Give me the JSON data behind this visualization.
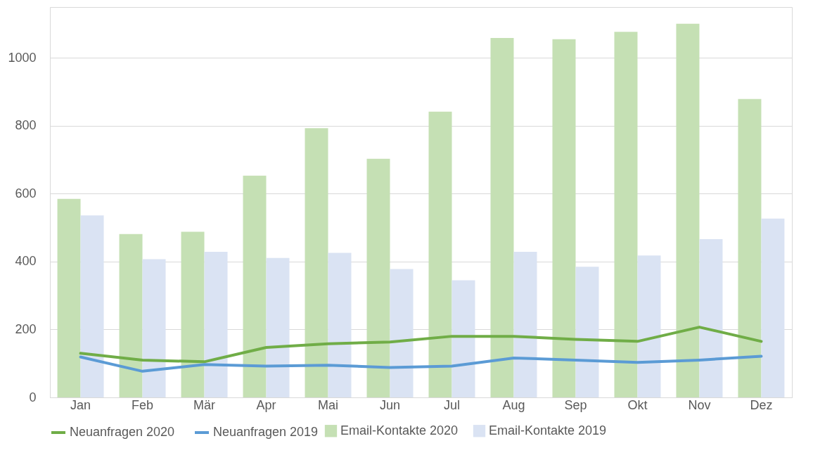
{
  "chart_data": {
    "type": "bar",
    "categories": [
      "Jan",
      "Feb",
      "Mär",
      "Apr",
      "Mai",
      "Jun",
      "Jul",
      "Aug",
      "Sep",
      "Okt",
      "Nov",
      "Dez"
    ],
    "series": [
      {
        "name": "Email-Kontakte 2020",
        "color": "#c5e0b4",
        "values": [
          585,
          481,
          488,
          653,
          793,
          703,
          842,
          1059,
          1055,
          1077,
          1101,
          879
        ]
      },
      {
        "name": "Email-Kontakte 2019",
        "color": "#dae3f3",
        "values": [
          536,
          407,
          429,
          411,
          426,
          378,
          345,
          429,
          385,
          418,
          466,
          527
        ]
      },
      {
        "name": "Neuanfragen 2020",
        "type": "line",
        "color": "#70ad47",
        "values": [
          130,
          110,
          105,
          147,
          158,
          163,
          180,
          180,
          171,
          165,
          207,
          165
        ]
      },
      {
        "name": "Neuanfragen 2019",
        "type": "line",
        "color": "#5b9bd5",
        "values": [
          119,
          77,
          97,
          92,
          95,
          88,
          92,
          116,
          110,
          103,
          110,
          121
        ]
      }
    ],
    "ylim": [
      0,
      1150
    ],
    "yticks": [
      0,
      200,
      400,
      600,
      800,
      1000
    ],
    "grid": "y",
    "legend": "bottom",
    "marker": "none",
    "line_style": "solid"
  }
}
